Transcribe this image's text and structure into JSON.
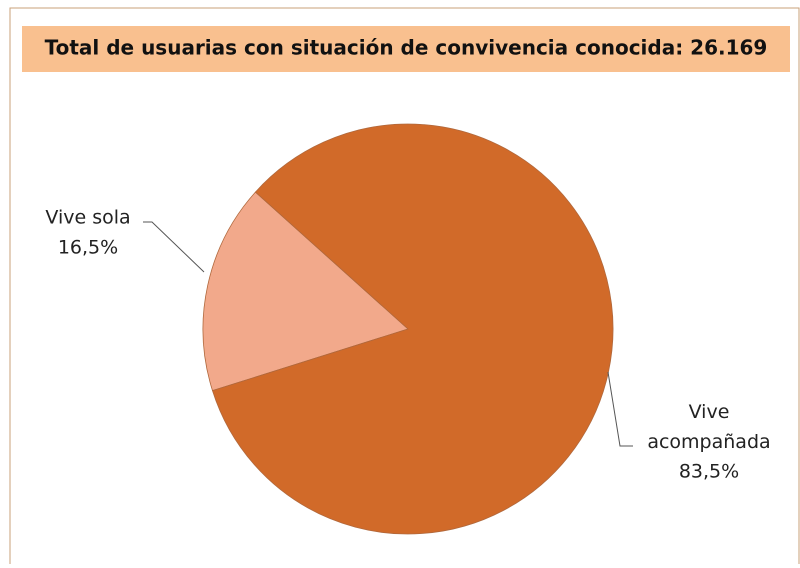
{
  "chart_data": {
    "type": "pie",
    "title": "Total de usuarias con situación de convivencia conocida: 26.169",
    "categories": [
      "Vive sola",
      "Vive acompañada"
    ],
    "values": [
      16.5,
      83.5
    ],
    "value_labels": [
      "16,5%",
      "83,5%"
    ],
    "colors": [
      "#f2a98b",
      "#d16a29"
    ]
  }
}
